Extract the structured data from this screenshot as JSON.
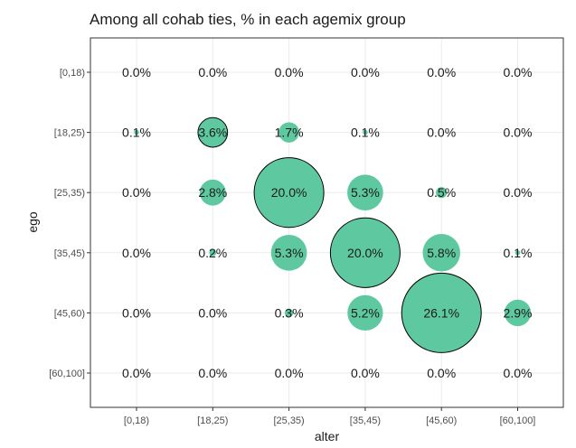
{
  "chart_data": {
    "type": "scatter",
    "title": "Among all cohab ties, % in each agemix group",
    "xlabel": "alter",
    "ylabel": "ego",
    "x_categories": [
      "[0,18)",
      "[18,25)",
      "[25,35)",
      "[35,45)",
      "[45,60)",
      "[60,100]"
    ],
    "y_categories": [
      "[0,18)",
      "[18,25)",
      "[25,35)",
      "[35,45)",
      "[45,60)",
      "[60,100]"
    ],
    "grid": true,
    "legend": "none",
    "colors": {
      "bubble_fill": "#5ec9a0",
      "bubble_outline": "#000000"
    },
    "points": [
      {
        "ego": "[0,18)",
        "alter": "[0,18)",
        "value": 0.0,
        "label": "0.0%",
        "outlined": false
      },
      {
        "ego": "[0,18)",
        "alter": "[18,25)",
        "value": 0.0,
        "label": "0.0%",
        "outlined": false
      },
      {
        "ego": "[0,18)",
        "alter": "[25,35)",
        "value": 0.0,
        "label": "0.0%",
        "outlined": false
      },
      {
        "ego": "[0,18)",
        "alter": "[35,45)",
        "value": 0.0,
        "label": "0.0%",
        "outlined": false
      },
      {
        "ego": "[0,18)",
        "alter": "[45,60)",
        "value": 0.0,
        "label": "0.0%",
        "outlined": false
      },
      {
        "ego": "[0,18)",
        "alter": "[60,100]",
        "value": 0.0,
        "label": "0.0%",
        "outlined": false
      },
      {
        "ego": "[18,25)",
        "alter": "[0,18)",
        "value": 0.1,
        "label": "0.1%",
        "outlined": false
      },
      {
        "ego": "[18,25)",
        "alter": "[18,25)",
        "value": 3.6,
        "label": "3.6%",
        "outlined": true
      },
      {
        "ego": "[18,25)",
        "alter": "[25,35)",
        "value": 1.7,
        "label": "1.7%",
        "outlined": false
      },
      {
        "ego": "[18,25)",
        "alter": "[35,45)",
        "value": 0.1,
        "label": "0.1%",
        "outlined": false
      },
      {
        "ego": "[18,25)",
        "alter": "[45,60)",
        "value": 0.0,
        "label": "0.0%",
        "outlined": false
      },
      {
        "ego": "[18,25)",
        "alter": "[60,100]",
        "value": 0.0,
        "label": "0.0%",
        "outlined": false
      },
      {
        "ego": "[25,35)",
        "alter": "[0,18)",
        "value": 0.0,
        "label": "0.0%",
        "outlined": false
      },
      {
        "ego": "[25,35)",
        "alter": "[18,25)",
        "value": 2.8,
        "label": "2.8%",
        "outlined": false
      },
      {
        "ego": "[25,35)",
        "alter": "[25,35)",
        "value": 20.0,
        "label": "20.0%",
        "outlined": true
      },
      {
        "ego": "[25,35)",
        "alter": "[35,45)",
        "value": 5.3,
        "label": "5.3%",
        "outlined": false
      },
      {
        "ego": "[25,35)",
        "alter": "[45,60)",
        "value": 0.5,
        "label": "0.5%",
        "outlined": false
      },
      {
        "ego": "[25,35)",
        "alter": "[60,100]",
        "value": 0.0,
        "label": "0.0%",
        "outlined": false
      },
      {
        "ego": "[35,45)",
        "alter": "[0,18)",
        "value": 0.0,
        "label": "0.0%",
        "outlined": false
      },
      {
        "ego": "[35,45)",
        "alter": "[18,25)",
        "value": 0.2,
        "label": "0.2%",
        "outlined": false
      },
      {
        "ego": "[35,45)",
        "alter": "[25,35)",
        "value": 5.3,
        "label": "5.3%",
        "outlined": false
      },
      {
        "ego": "[35,45)",
        "alter": "[35,45)",
        "value": 20.0,
        "label": "20.0%",
        "outlined": true
      },
      {
        "ego": "[35,45)",
        "alter": "[45,60)",
        "value": 5.8,
        "label": "5.8%",
        "outlined": false
      },
      {
        "ego": "[35,45)",
        "alter": "[60,100]",
        "value": 0.1,
        "label": "0.1%",
        "outlined": false
      },
      {
        "ego": "[45,60)",
        "alter": "[0,18)",
        "value": 0.0,
        "label": "0.0%",
        "outlined": false
      },
      {
        "ego": "[45,60)",
        "alter": "[18,25)",
        "value": 0.0,
        "label": "0.0%",
        "outlined": false
      },
      {
        "ego": "[45,60)",
        "alter": "[25,35)",
        "value": 0.3,
        "label": "0.3%",
        "outlined": false
      },
      {
        "ego": "[45,60)",
        "alter": "[35,45)",
        "value": 5.2,
        "label": "5.2%",
        "outlined": false
      },
      {
        "ego": "[45,60)",
        "alter": "[45,60)",
        "value": 26.1,
        "label": "26.1%",
        "outlined": true
      },
      {
        "ego": "[45,60)",
        "alter": "[60,100]",
        "value": 2.9,
        "label": "2.9%",
        "outlined": false
      },
      {
        "ego": "[60,100]",
        "alter": "[0,18)",
        "value": 0.0,
        "label": "0.0%",
        "outlined": false
      },
      {
        "ego": "[60,100]",
        "alter": "[18,25)",
        "value": 0.0,
        "label": "0.0%",
        "outlined": false
      },
      {
        "ego": "[60,100]",
        "alter": "[25,35)",
        "value": 0.0,
        "label": "0.0%",
        "outlined": false
      },
      {
        "ego": "[60,100]",
        "alter": "[35,45)",
        "value": 0.0,
        "label": "0.0%",
        "outlined": false
      },
      {
        "ego": "[60,100]",
        "alter": "[45,60)",
        "value": 0.0,
        "label": "0.0%",
        "outlined": false
      },
      {
        "ego": "[60,100]",
        "alter": "[60,100]",
        "value": 0.0,
        "label": "0.0%",
        "outlined": false
      }
    ]
  }
}
